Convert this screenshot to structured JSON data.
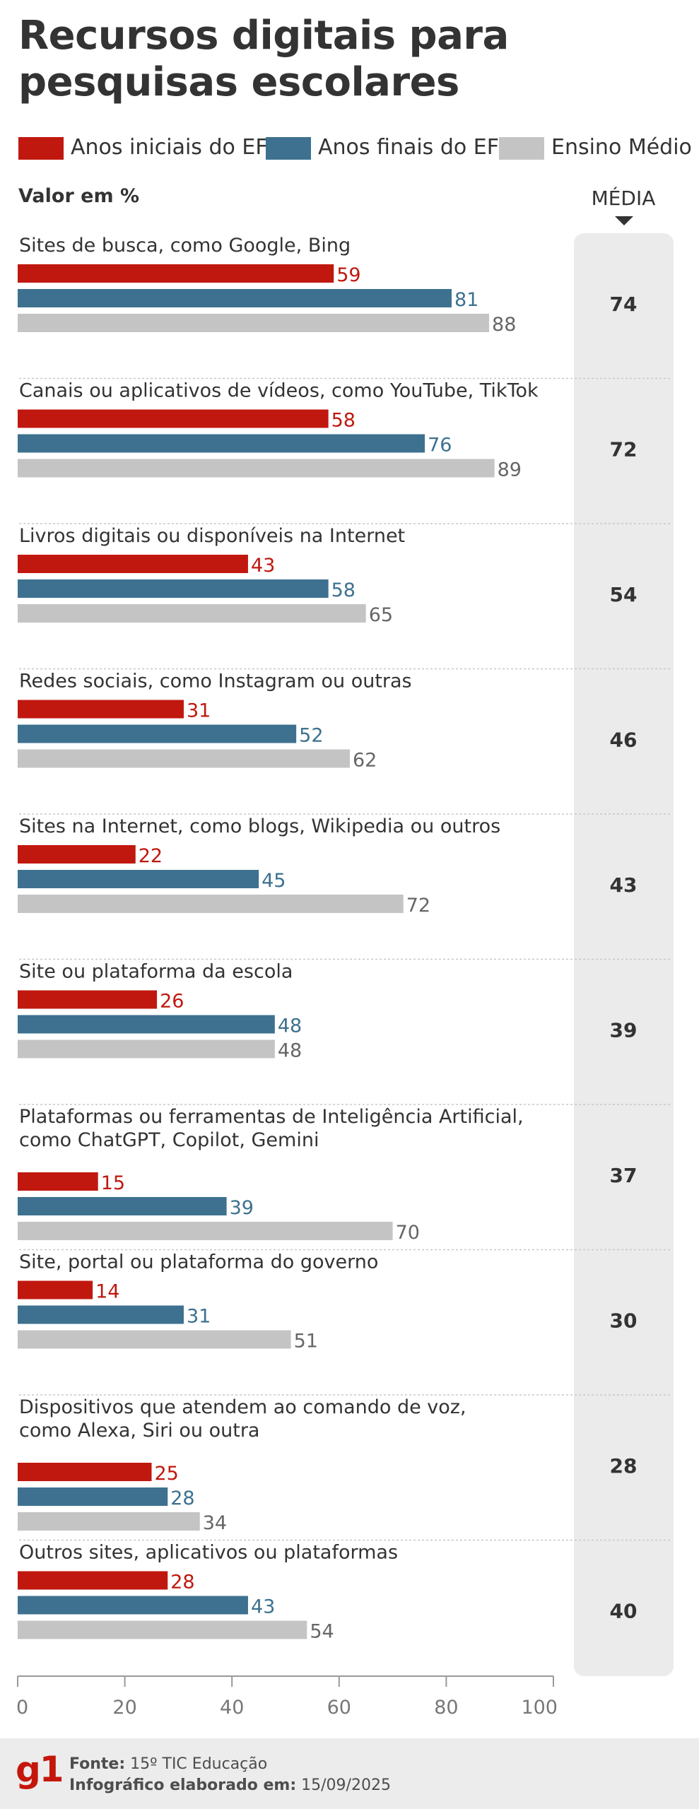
{
  "title": "Recursos digitais para pesquisas escolares",
  "legend": [
    {
      "label": "Anos iniciais do EF",
      "color": "#c0180f"
    },
    {
      "label": "Anos finais do EF",
      "color": "#3d718f"
    },
    {
      "label": "Ensino Médio",
      "color": "#c4c4c4"
    }
  ],
  "unit_label": "Valor em %",
  "media_header": "MÉDIA",
  "colors": {
    "red_label": "#c0180f",
    "blue_label": "#3d718f",
    "grey_label": "#666666",
    "separator": "#c8c8c8",
    "axis": "#999999",
    "text": "#333333"
  },
  "chart_data": {
    "type": "bar",
    "orientation": "horizontal",
    "title": "Recursos digitais para pesquisas escolares",
    "xlabel": "",
    "ylabel": "Valor em %",
    "xlim": [
      0,
      100
    ],
    "ticks": [
      0,
      20,
      40,
      60,
      80,
      100
    ],
    "categories": [
      [
        "Sites de busca, como Google, Bing"
      ],
      [
        "Canais ou aplicativos de vídeos, como YouTube, TikTok"
      ],
      [
        "Livros digitais ou disponíveis na Internet"
      ],
      [
        "Redes sociais, como Instagram ou outras"
      ],
      [
        "Sites na Internet, como blogs, Wikipedia ou outros"
      ],
      [
        "Site ou plataforma da escola"
      ],
      [
        "Plataformas ou ferramentas de Inteligência Artificial,",
        "como ChatGPT, Copilot, Gemini"
      ],
      [
        "Site, portal ou plataforma do governo"
      ],
      [
        "Dispositivos que atendem ao comando de voz,",
        "como Alexa, Siri ou outra"
      ],
      [
        "Outros sites, aplicativos ou plataformas"
      ]
    ],
    "series": [
      {
        "name": "Anos iniciais do EF",
        "color": "#c0180f",
        "values": [
          59,
          58,
          43,
          31,
          22,
          26,
          15,
          14,
          25,
          28
        ]
      },
      {
        "name": "Anos finais do EF",
        "color": "#3d718f",
        "values": [
          81,
          76,
          58,
          52,
          45,
          48,
          39,
          31,
          28,
          43
        ]
      },
      {
        "name": "Ensino Médio",
        "color": "#c4c4c4",
        "values": [
          88,
          89,
          65,
          62,
          72,
          48,
          70,
          51,
          34,
          54
        ]
      }
    ],
    "media": [
      74,
      72,
      54,
      46,
      43,
      39,
      37,
      30,
      28,
      40
    ]
  },
  "footer": {
    "logo": "g1",
    "source_label": "Fonte:",
    "source_value": "15º TIC Educação",
    "date_label": "Infográfico elaborado em:",
    "date_value": "15/09/2025"
  }
}
